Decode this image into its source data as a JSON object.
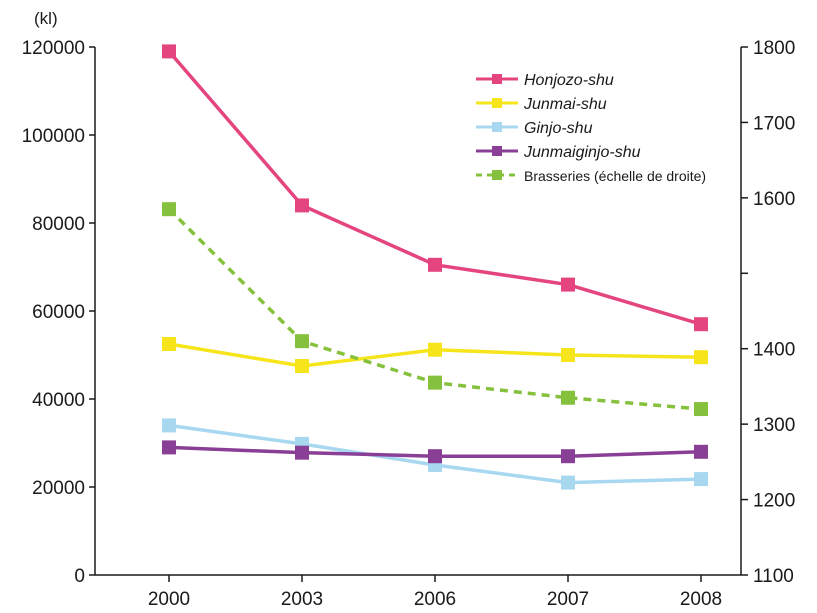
{
  "chart_data": {
    "type": "line",
    "unit_left": "(kl)",
    "categories": [
      "2000",
      "2003",
      "2006",
      "2007",
      "2008"
    ],
    "y_left": {
      "min": 0,
      "max": 120000,
      "ticks": [
        "0",
        "20000",
        "40000",
        "60000",
        "80000",
        "100000",
        "120000"
      ]
    },
    "y_right": {
      "min": 1100,
      "max": 1800,
      "ticks": [
        "1100",
        "1200",
        "1300",
        "1400",
        "1500",
        "1600",
        "1700",
        "1800"
      ],
      "tick_labels": [
        "1100",
        "1200",
        "1300",
        "1400",
        "",
        "1600",
        "1700",
        "1800"
      ]
    },
    "grid": false,
    "legend_position": "top-right",
    "series": [
      {
        "name": "Honjozo-shu",
        "axis": "left",
        "color": "#e5457e",
        "dashed": false,
        "italic": true,
        "values": [
          119000,
          84000,
          70500,
          66000,
          57000
        ]
      },
      {
        "name": "Junmai-shu",
        "axis": "left",
        "color": "#f6e51b",
        "dashed": false,
        "italic": true,
        "values": [
          52500,
          47500,
          51200,
          50000,
          49500
        ]
      },
      {
        "name": "Ginjo-shu",
        "axis": "left",
        "color": "#a7d8f0",
        "dashed": false,
        "italic": true,
        "values": [
          34000,
          29800,
          25000,
          21000,
          21800
        ]
      },
      {
        "name": "Junmaiginjo-shu",
        "axis": "left",
        "color": "#8a3f96",
        "dashed": false,
        "italic": true,
        "values": [
          29000,
          27800,
          27000,
          27000,
          28000
        ]
      },
      {
        "name": "Brasseries (échelle de droite)",
        "axis": "right",
        "color": "#86c13d",
        "dashed": true,
        "italic": false,
        "values": [
          1585,
          1410,
          1355,
          1335,
          1320
        ]
      }
    ]
  }
}
